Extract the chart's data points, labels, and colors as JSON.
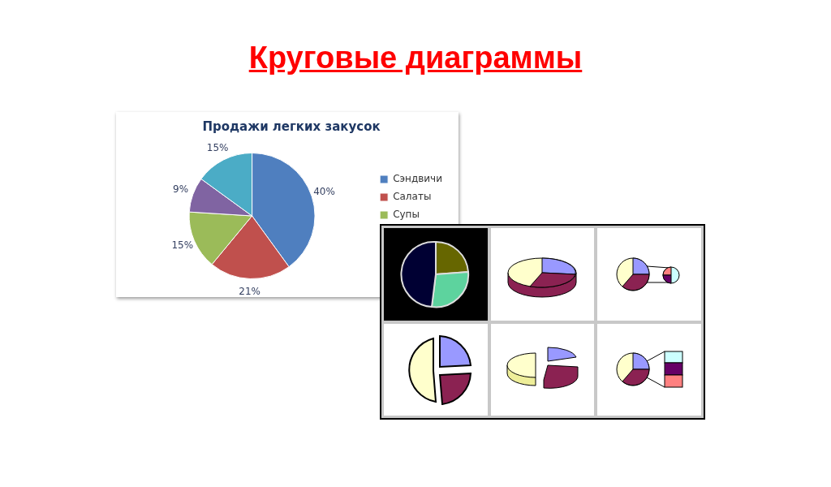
{
  "chart_data": {
    "type": "pie",
    "title": "Круговые диаграммы",
    "subtitle": "Продажи легких закусок",
    "categories": [
      "Сэндвичи",
      "Салаты",
      "Супы",
      null,
      null
    ],
    "values": [
      40,
      21,
      15,
      9,
      15
    ],
    "value_labels": [
      "40%",
      "21%",
      "15%",
      "9%",
      "15%"
    ],
    "colors": [
      "#4f7fbf",
      "#c0504d",
      "#9bbb59",
      "#8064a2",
      "#4bacc6"
    ],
    "legend": "right"
  }
}
